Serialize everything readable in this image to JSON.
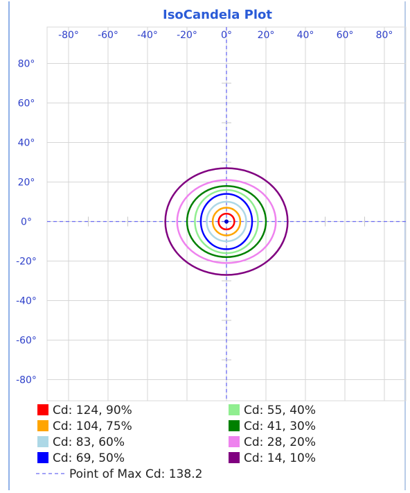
{
  "chart_data": {
    "type": "isocandela-contour",
    "title": "IsoCandela Plot",
    "x_ticks": [
      "-80°",
      "-60°",
      "-40°",
      "-20°",
      "0°",
      "20°",
      "40°",
      "60°",
      "80°"
    ],
    "y_ticks": [
      "80°",
      "60°",
      "40°",
      "20°",
      "0°",
      "-20°",
      "-40°",
      "-60°",
      "-80°"
    ],
    "x_values": [
      -80,
      -60,
      -40,
      -20,
      0,
      20,
      40,
      60,
      80
    ],
    "y_values": [
      80,
      60,
      40,
      20,
      0,
      -20,
      -40,
      -60,
      -80
    ],
    "xlim": [
      -90,
      90
    ],
    "ylim": [
      -90,
      90
    ],
    "grid": true,
    "legend_position": "bottom",
    "contours": [
      {
        "label": "Cd: 124, 90%",
        "color": "#ff0000",
        "rx": 4,
        "ry": 4
      },
      {
        "label": "Cd: 104, 75%",
        "color": "#ffa500",
        "rx": 7,
        "ry": 7
      },
      {
        "label": "Cd: 83, 60%",
        "color": "#add8e6",
        "rx": 10,
        "ry": 10
      },
      {
        "label": "Cd: 69, 50%",
        "color": "#0000ff",
        "rx": 13,
        "ry": 14
      },
      {
        "label": "Cd: 55, 40%",
        "color": "#90ee90",
        "rx": 16,
        "ry": 16
      },
      {
        "label": "Cd: 41, 30%",
        "color": "#008000",
        "rx": 20,
        "ry": 18
      },
      {
        "label": "Cd: 28, 20%",
        "color": "#ee82ee",
        "rx": 25,
        "ry": 21
      },
      {
        "label": "Cd: 14, 10%",
        "color": "#800080",
        "rx": 31,
        "ry": 27
      }
    ],
    "max_point": {
      "x": 0,
      "y": 0
    },
    "max_label": "Point of Max Cd: 138.2",
    "max_line_color": "#6a6af0"
  }
}
